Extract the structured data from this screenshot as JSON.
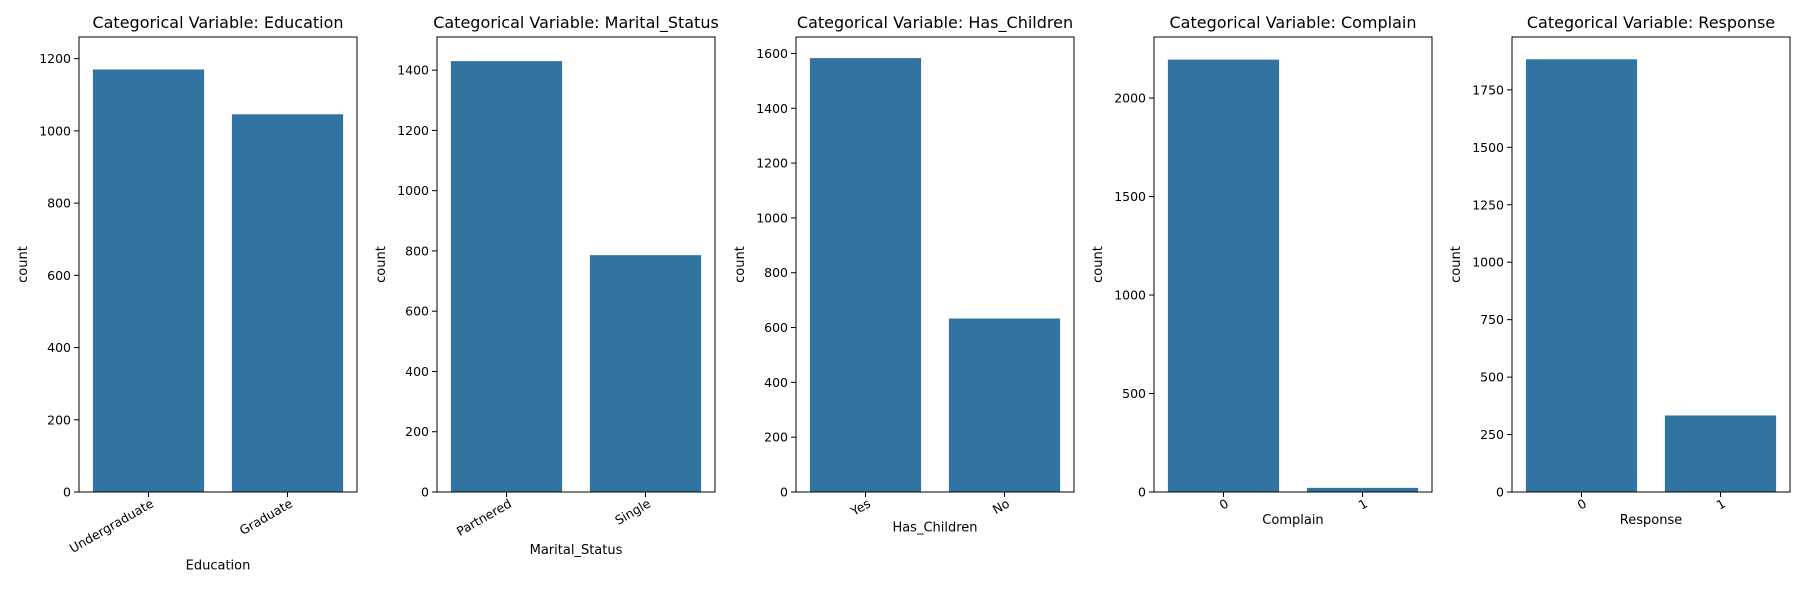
{
  "bar_color": "#3274a1",
  "chart_data": [
    {
      "type": "bar",
      "title": "Categorical Variable: Education",
      "xlabel": "Education",
      "ylabel": "count",
      "categories": [
        "Undergraduate",
        "Graduate"
      ],
      "values": [
        1170,
        1046
      ],
      "ylim": [
        0,
        1260
      ],
      "yticks": [
        0,
        200,
        400,
        600,
        800,
        1000,
        1200
      ],
      "xtick_rotation": 30
    },
    {
      "type": "bar",
      "title": "Categorical Variable: Marital_Status",
      "xlabel": "Marital_Status",
      "ylabel": "count",
      "categories": [
        "Partnered",
        "Single"
      ],
      "values": [
        1430,
        786
      ],
      "ylim": [
        0,
        1510
      ],
      "yticks": [
        0,
        200,
        400,
        600,
        800,
        1000,
        1200,
        1400
      ],
      "xtick_rotation": 30
    },
    {
      "type": "bar",
      "title": "Categorical Variable: Has_Children",
      "xlabel": "Has_Children",
      "ylabel": "count",
      "categories": [
        "Yes",
        "No"
      ],
      "values": [
        1583,
        633
      ],
      "ylim": [
        0,
        1660
      ],
      "yticks": [
        0,
        200,
        400,
        600,
        800,
        1000,
        1200,
        1400,
        1600
      ],
      "xtick_rotation": 30
    },
    {
      "type": "bar",
      "title": "Categorical Variable: Complain",
      "xlabel": "Complain",
      "ylabel": "count",
      "categories": [
        "0",
        "1"
      ],
      "values": [
        2195,
        21
      ],
      "ylim": [
        0,
        2310
      ],
      "yticks": [
        0,
        500,
        1000,
        1500,
        2000
      ],
      "xtick_rotation": 30
    },
    {
      "type": "bar",
      "title": "Categorical Variable: Response",
      "xlabel": "Response",
      "ylabel": "count",
      "categories": [
        "0",
        "1"
      ],
      "values": [
        1883,
        333
      ],
      "ylim": [
        0,
        1980
      ],
      "yticks": [
        0,
        250,
        500,
        750,
        1000,
        1250,
        1500,
        1750
      ],
      "xtick_rotation": 30
    }
  ]
}
